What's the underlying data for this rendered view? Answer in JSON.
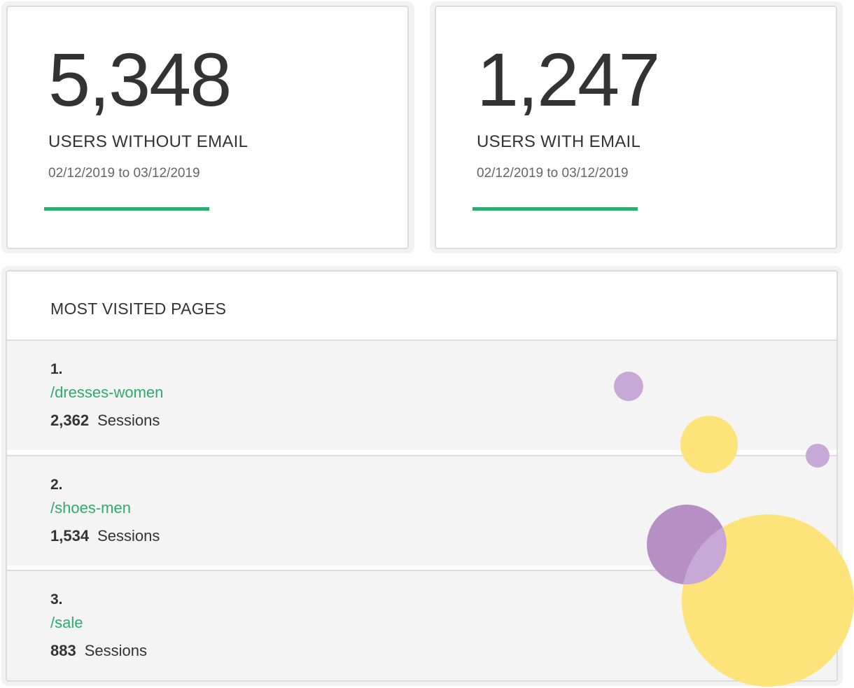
{
  "stats": [
    {
      "value": "5,348",
      "label": "USERS WITHOUT EMAIL",
      "date_from": "02/12/2019",
      "date_to": "03/12/2019",
      "range_sep": "to"
    },
    {
      "value": "1,247",
      "label": "USERS WITH EMAIL",
      "date_from": "02/12/2019",
      "date_to": "03/12/2019",
      "range_sep": "to"
    }
  ],
  "most_visited": {
    "title": "MOST VISITED PAGES",
    "sessions_label": "Sessions",
    "pages": [
      {
        "rank": "1.",
        "path": "/dresses-women",
        "sessions": "2,362"
      },
      {
        "rank": "2.",
        "path": "/shoes-men",
        "sessions": "1,534"
      },
      {
        "rank": "3.",
        "path": "/sale",
        "sessions": "883"
      }
    ]
  },
  "colors": {
    "accent_green": "#2eac6d",
    "bubble_purple": "#b68fc4",
    "bubble_purple_light": "#c8a8d6",
    "bubble_yellow": "#fde47a"
  }
}
